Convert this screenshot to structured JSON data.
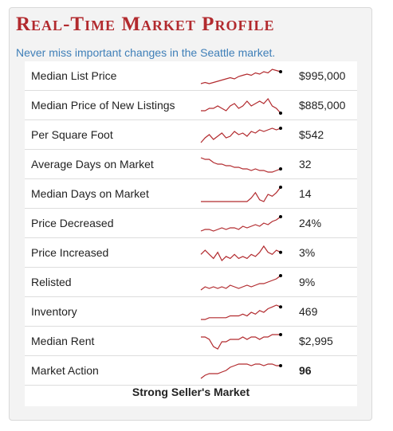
{
  "header": {
    "title": "Real-Time Market Profile",
    "subtitle": "Never miss important changes in the Seattle market."
  },
  "colors": {
    "title": "#b22a2e",
    "subtitle": "#3f7fb8",
    "sparkline": "#b22a2e",
    "endpoint": "#000000"
  },
  "rows": [
    {
      "label": "Median List Price",
      "value": "$995,000",
      "trend": [
        2,
        3,
        2,
        3,
        4,
        5,
        6,
        7,
        6,
        8,
        9,
        10,
        9,
        11,
        10,
        12,
        11,
        14,
        13,
        12
      ]
    },
    {
      "label": "Median Price of New Listings",
      "value": "$885,000",
      "trend": [
        3,
        3,
        4,
        4,
        5,
        4,
        3,
        5,
        6,
        4,
        5,
        7,
        5,
        6,
        7,
        6,
        8,
        5,
        4,
        2
      ]
    },
    {
      "label": "Per Square Foot",
      "value": "$542",
      "trend": [
        2,
        5,
        7,
        4,
        6,
        8,
        5,
        6,
        9,
        7,
        8,
        6,
        9,
        8,
        10,
        9,
        10,
        11,
        10,
        11
      ]
    },
    {
      "label": "Average Days on Market",
      "value": "32",
      "trend": [
        12,
        11,
        11,
        9,
        8,
        8,
        7,
        7,
        6,
        6,
        5,
        5,
        4,
        5,
        4,
        4,
        3,
        3,
        4,
        5
      ]
    },
    {
      "label": "Median Days on Market",
      "value": "14",
      "trend": [
        2,
        2,
        2,
        2,
        2,
        2,
        2,
        2,
        2,
        2,
        2,
        2,
        4,
        7,
        3,
        2,
        6,
        5,
        7,
        10
      ]
    },
    {
      "label": "Price Decreased",
      "value": "24%",
      "trend": [
        2,
        3,
        3,
        2,
        3,
        4,
        3,
        4,
        4,
        3,
        5,
        4,
        5,
        6,
        5,
        7,
        6,
        8,
        9,
        11
      ]
    },
    {
      "label": "Price Increased",
      "value": "3%",
      "trend": [
        6,
        8,
        6,
        4,
        7,
        3,
        5,
        4,
        6,
        4,
        5,
        4,
        6,
        5,
        7,
        10,
        7,
        6,
        8,
        7
      ]
    },
    {
      "label": "Relisted",
      "value": "9%",
      "trend": [
        2,
        4,
        3,
        4,
        3,
        4,
        3,
        5,
        4,
        3,
        4,
        5,
        4,
        5,
        6,
        6,
        7,
        8,
        9,
        11
      ]
    },
    {
      "label": "Inventory",
      "value": "469",
      "trend": [
        1,
        1,
        2,
        2,
        2,
        2,
        2,
        3,
        3,
        3,
        4,
        3,
        5,
        4,
        6,
        5,
        7,
        8,
        9,
        8
      ]
    },
    {
      "label": "Median Rent",
      "value": "$2,995",
      "trend": [
        8,
        8,
        7,
        4,
        3,
        6,
        6,
        7,
        7,
        7,
        8,
        7,
        8,
        8,
        7,
        8,
        8,
        9,
        9,
        9
      ]
    },
    {
      "label": "Market Action",
      "value": "96",
      "trend": [
        1,
        3,
        4,
        4,
        4,
        5,
        6,
        8,
        9,
        10,
        10,
        10,
        9,
        10,
        10,
        9,
        10,
        10,
        9,
        9
      ]
    }
  ],
  "footer": {
    "status": "Strong Seller's Market"
  }
}
